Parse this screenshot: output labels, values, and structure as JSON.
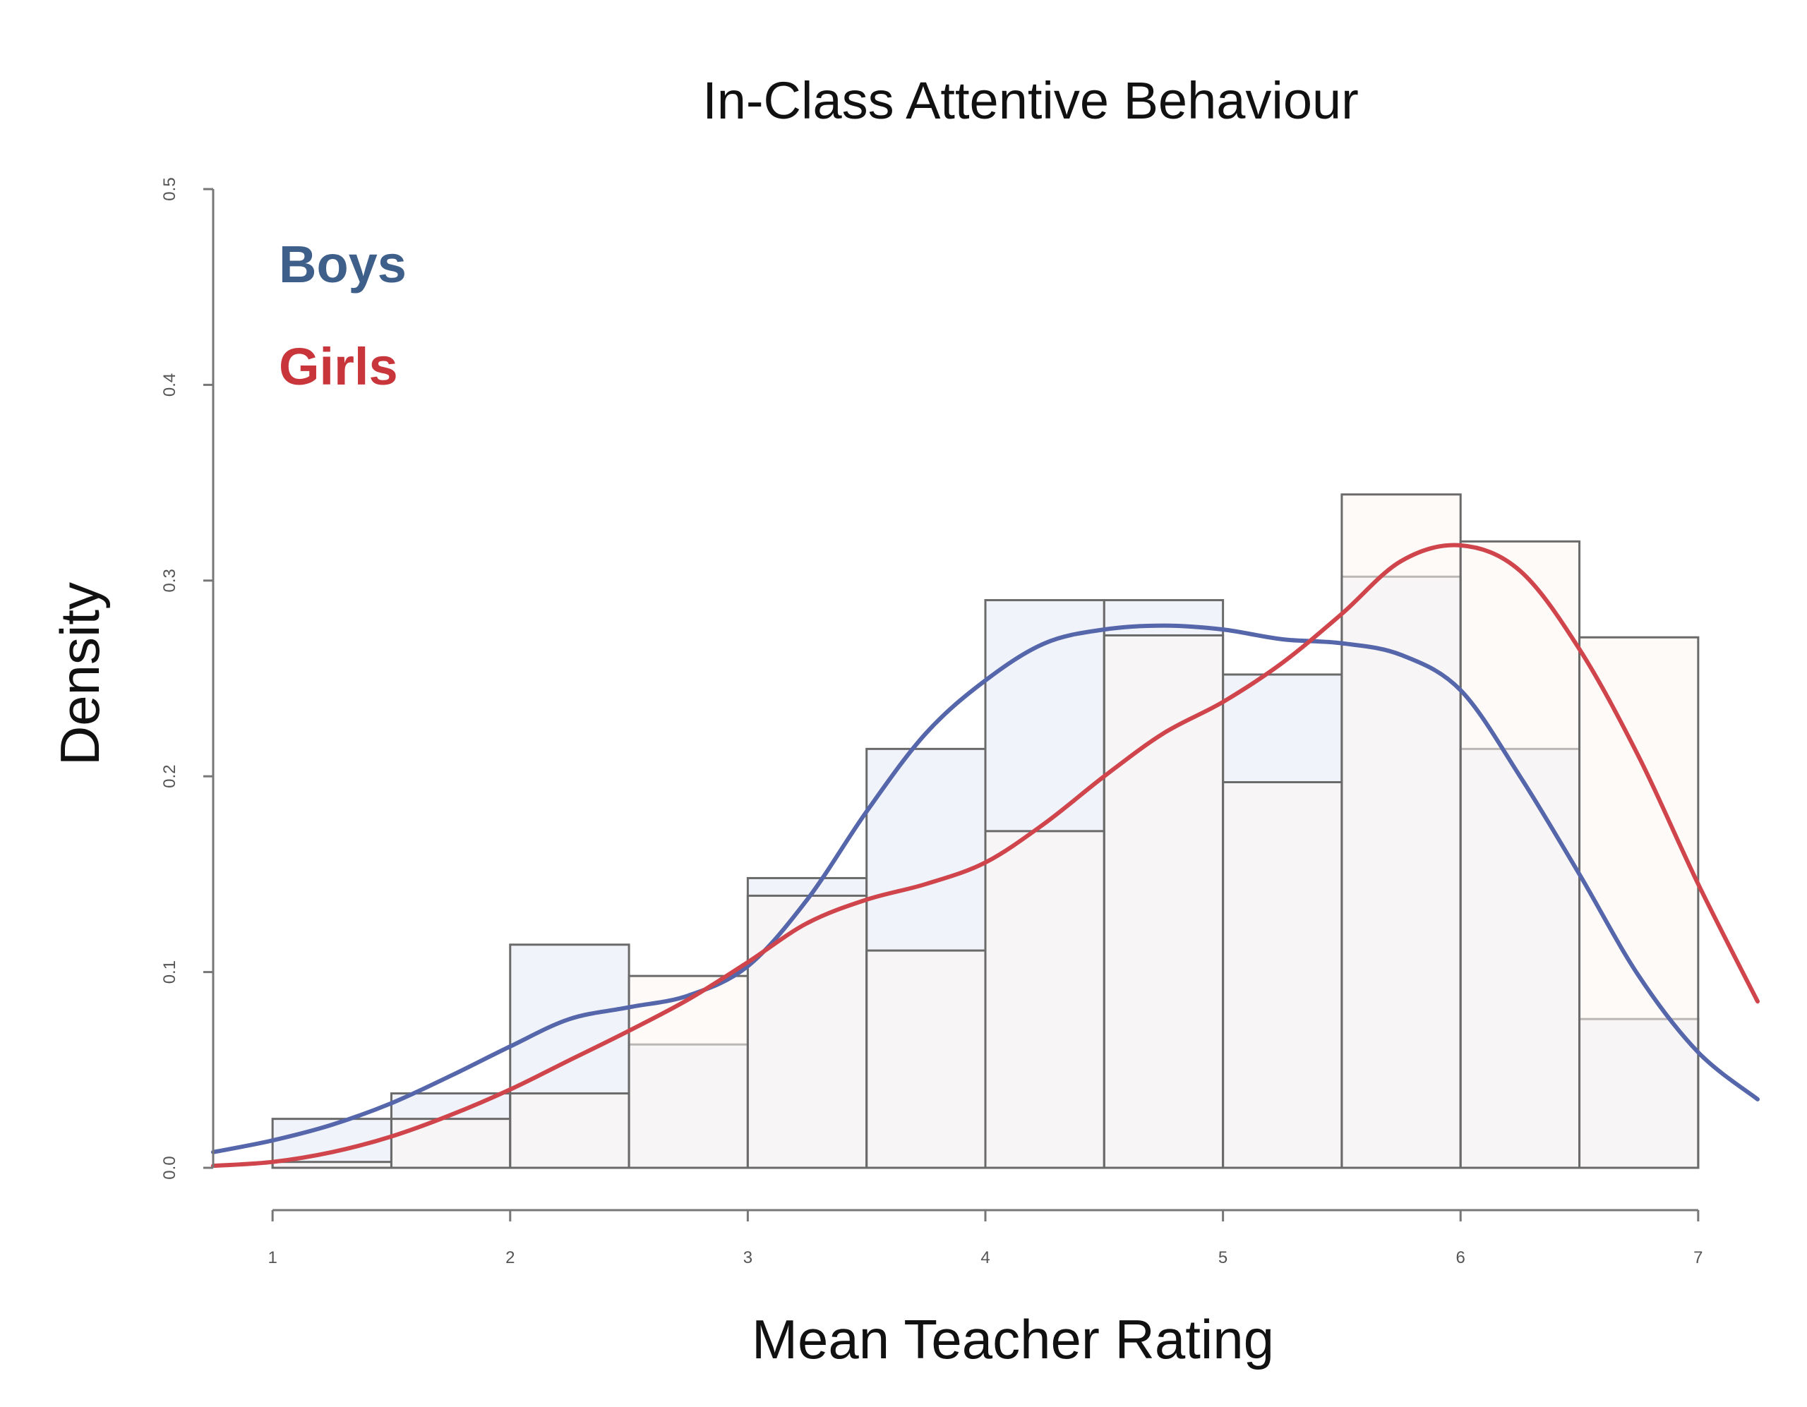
{
  "chart_data": {
    "type": "histogram",
    "title": "In-Class Attentive Behaviour",
    "xlabel": "Mean Teacher Rating",
    "ylabel": "Density",
    "xlim": [
      0.75,
      7.25
    ],
    "ylim": [
      0,
      0.5
    ],
    "x_ticks": [
      "1",
      "2",
      "3",
      "4",
      "5",
      "6",
      "7"
    ],
    "y_ticks": [
      "0.0",
      "0.1",
      "0.2",
      "0.3",
      "0.4",
      "0.5"
    ],
    "bin_edges": [
      1.0,
      1.5,
      2.0,
      2.5,
      3.0,
      3.5,
      4.0,
      4.5,
      5.0,
      5.5,
      6.0,
      6.5,
      7.0
    ],
    "series": [
      {
        "name": "Boys",
        "color": "#3e5f8a",
        "bar_fill": "#f1f3fa",
        "line_color": "#5566aa",
        "values": [
          0.025,
          0.038,
          0.114,
          0.063,
          0.148,
          0.214,
          0.29,
          0.29,
          0.252,
          0.302,
          0.214,
          0.076
        ],
        "density_curve": {
          "x": [
            0.75,
            1.0,
            1.25,
            1.5,
            1.75,
            2.0,
            2.25,
            2.5,
            2.75,
            3.0,
            3.25,
            3.5,
            3.75,
            4.0,
            4.25,
            4.5,
            4.75,
            5.0,
            5.25,
            5.5,
            5.75,
            6.0,
            6.25,
            6.5,
            6.75,
            7.0,
            7.25
          ],
          "y": [
            0.008,
            0.014,
            0.022,
            0.033,
            0.047,
            0.062,
            0.076,
            0.082,
            0.088,
            0.103,
            0.137,
            0.182,
            0.222,
            0.249,
            0.268,
            0.275,
            0.277,
            0.275,
            0.27,
            0.268,
            0.262,
            0.244,
            0.2,
            0.15,
            0.098,
            0.059,
            0.035
          ]
        }
      },
      {
        "name": "Girls",
        "color": "#c8363c",
        "bar_fill": "#fdf5f2",
        "line_color": "#d0454c",
        "values": [
          0.003,
          0.025,
          0.038,
          0.098,
          0.139,
          0.111,
          0.172,
          0.272,
          0.197,
          0.344,
          0.32,
          0.271
        ],
        "density_curve": {
          "x": [
            0.75,
            1.0,
            1.25,
            1.5,
            1.75,
            2.0,
            2.25,
            2.5,
            2.75,
            3.0,
            3.25,
            3.5,
            3.75,
            4.0,
            4.25,
            4.5,
            4.75,
            5.0,
            5.25,
            5.5,
            5.75,
            6.0,
            6.25,
            6.5,
            6.75,
            7.0,
            7.25
          ],
          "y": [
            0.001,
            0.003,
            0.008,
            0.016,
            0.027,
            0.04,
            0.055,
            0.07,
            0.086,
            0.105,
            0.125,
            0.137,
            0.145,
            0.156,
            0.176,
            0.2,
            0.222,
            0.238,
            0.258,
            0.283,
            0.31,
            0.318,
            0.305,
            0.265,
            0.21,
            0.145,
            0.085
          ]
        }
      }
    ],
    "legend": "top-left",
    "grid": false
  }
}
